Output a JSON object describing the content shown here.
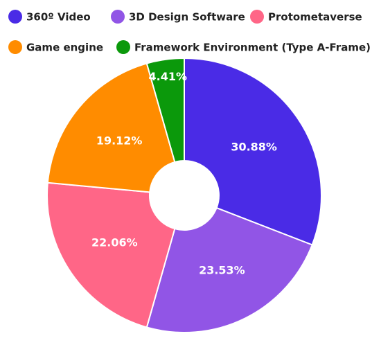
{
  "chart_data": {
    "type": "pie",
    "donut": true,
    "categories": [
      "360º Video",
      "3D Design Software",
      "Protometaverse",
      "Game engine",
      "Framework Environment (Type A-Frame)"
    ],
    "values": [
      30.88,
      23.53,
      22.06,
      19.12,
      4.41
    ],
    "value_labels": [
      "30.88%",
      "23.53%",
      "22.06%",
      "19.12%",
      "4.41%"
    ],
    "colors": [
      "#4a2be6",
      "#9155e6",
      "#ff6687",
      "#ff8c00",
      "#0b990b"
    ]
  }
}
